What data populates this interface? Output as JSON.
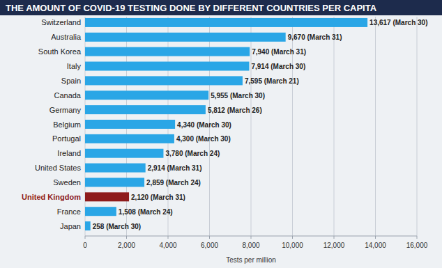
{
  "chart_data": {
    "type": "bar",
    "orientation": "horizontal",
    "title": "THE AMOUNT OF COVID-19 TESTING DONE BY DIFFERENT COUNTRIES PER CAPITA",
    "x_label": "Tests per million",
    "categories": [
      "Switzerland",
      "Australia",
      "South Korea",
      "Italy",
      "Spain",
      "Canada",
      "Germany",
      "Belgium",
      "Portugal",
      "Ireland",
      "United States",
      "Sweden",
      "United Kingdom",
      "France",
      "Japan"
    ],
    "values": [
      13617,
      9670,
      7940,
      7914,
      7595,
      5955,
      5812,
      4340,
      4300,
      3780,
      2914,
      2859,
      2120,
      1508,
      258
    ],
    "value_labels": [
      "13,617 (March 30)",
      "9,670 (March 31)",
      "7,940 (March 31)",
      "7,914 (March 30)",
      "7,595 (March 21)",
      "5,955 (March 30)",
      "5,812 (March 26)",
      "4,340 (March 30)",
      "4,300 (March 30)",
      "3,780 (March 24)",
      "2,914 (March 31)",
      "2,859 (March 24)",
      "2,120 (March 31)",
      "1,508 (March 24)",
      "258 (March 30)"
    ],
    "colors": [
      "#2aa6e6",
      "#2aa6e6",
      "#2aa6e6",
      "#2aa6e6",
      "#2aa6e6",
      "#2aa6e6",
      "#2aa6e6",
      "#2aa6e6",
      "#2aa6e6",
      "#2aa6e6",
      "#2aa6e6",
      "#2aa6e6",
      "#8e1b1b",
      "#2aa6e6",
      "#2aa6e6"
    ],
    "xlim": [
      0,
      16000
    ],
    "xticks": [
      0,
      {
        "value": 2000,
        "label": "2,000"
      },
      {
        "value": 4000,
        "label": "4,000"
      },
      {
        "value": 6000,
        "label": "6,000"
      },
      {
        "value": 8000,
        "label": "8,000"
      },
      {
        "value": 10000,
        "label": "10,000"
      },
      {
        "value": 12000,
        "label": "12,000"
      },
      {
        "value": 14000,
        "label": "14,000"
      },
      {
        "value": 16000,
        "label": "16,000"
      }
    ],
    "grid": true,
    "data_labels": true
  }
}
